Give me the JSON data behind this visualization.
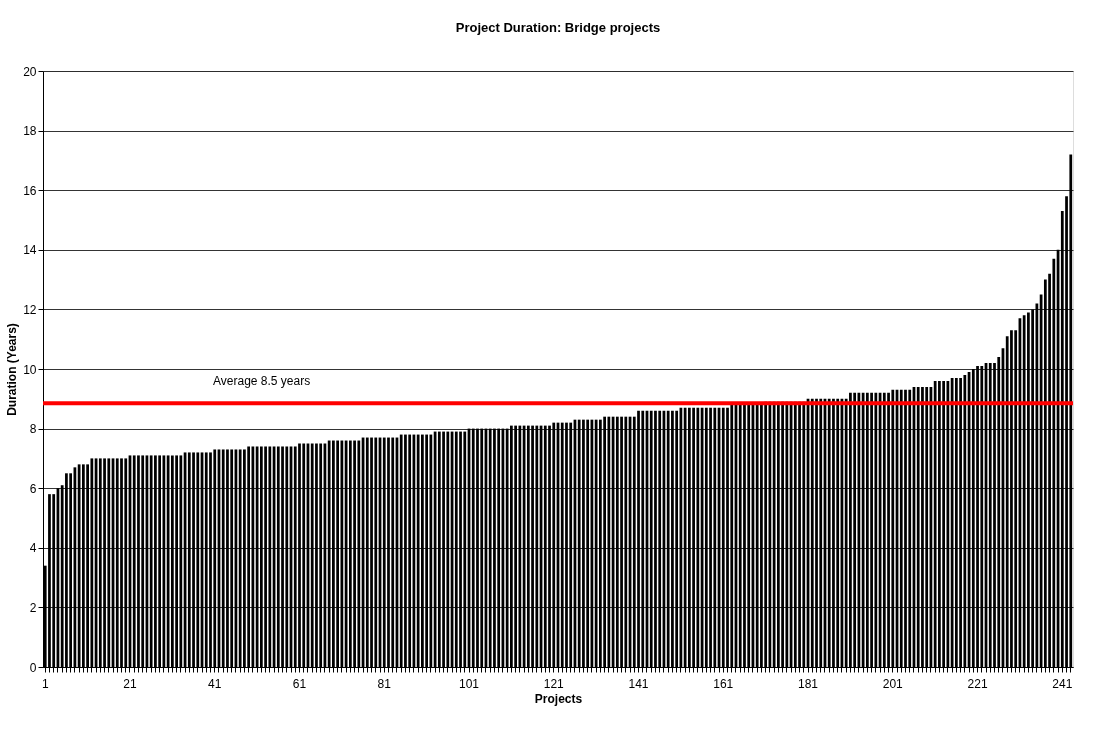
{
  "chart_data": {
    "type": "bar",
    "title": "Project Duration: Bridge projects",
    "xlabel": "Projects",
    "ylabel": "Duration (Years)",
    "categories": [
      "1",
      null,
      null,
      null,
      null,
      null,
      null,
      null,
      null,
      null,
      null,
      null,
      null,
      null,
      null,
      null,
      null,
      null,
      null,
      null,
      "21",
      null,
      null,
      null,
      null,
      null,
      null,
      null,
      null,
      null,
      null,
      null,
      null,
      null,
      null,
      null,
      null,
      null,
      null,
      null,
      "41",
      null,
      null,
      null,
      null,
      null,
      null,
      null,
      null,
      null,
      null,
      null,
      null,
      null,
      null,
      null,
      null,
      null,
      null,
      null,
      "61",
      null,
      null,
      null,
      null,
      null,
      null,
      null,
      null,
      null,
      null,
      null,
      null,
      null,
      null,
      null,
      null,
      null,
      null,
      null,
      "81",
      null,
      null,
      null,
      null,
      null,
      null,
      null,
      null,
      null,
      null,
      null,
      null,
      null,
      null,
      null,
      null,
      null,
      null,
      null,
      "101",
      null,
      null,
      null,
      null,
      null,
      null,
      null,
      null,
      null,
      null,
      null,
      null,
      null,
      null,
      null,
      null,
      null,
      null,
      null,
      "121",
      null,
      null,
      null,
      null,
      null,
      null,
      null,
      null,
      null,
      null,
      null,
      null,
      null,
      null,
      null,
      null,
      null,
      null,
      null,
      "141",
      null,
      null,
      null,
      null,
      null,
      null,
      null,
      null,
      null,
      null,
      null,
      null,
      null,
      null,
      null,
      null,
      null,
      null,
      null,
      "161",
      null,
      null,
      null,
      null,
      null,
      null,
      null,
      null,
      null,
      null,
      null,
      null,
      null,
      null,
      null,
      null,
      null,
      null,
      null,
      "181",
      null,
      null,
      null,
      null,
      null,
      null,
      null,
      null,
      null,
      null,
      null,
      null,
      null,
      null,
      null,
      null,
      null,
      null,
      null,
      "201",
      null,
      null,
      null,
      null,
      null,
      null,
      null,
      null,
      null,
      null,
      null,
      null,
      null,
      null,
      null,
      null,
      null,
      null,
      null,
      "221",
      null,
      null,
      null,
      null,
      null,
      null,
      null,
      null,
      null,
      null,
      null,
      null,
      null,
      null,
      null,
      null,
      null,
      null,
      null,
      "241",
      null,
      null
    ],
    "values": [
      3.4,
      5.8,
      5.8,
      6.0,
      6.1,
      6.5,
      6.5,
      6.7,
      6.8,
      6.8,
      6.8,
      7.0,
      7.0,
      7.0,
      7.0,
      7.0,
      7.0,
      7.0,
      7.0,
      7.0,
      7.1,
      7.1,
      7.1,
      7.1,
      7.1,
      7.1,
      7.1,
      7.1,
      7.1,
      7.1,
      7.1,
      7.1,
      7.1,
      7.2,
      7.2,
      7.2,
      7.2,
      7.2,
      7.2,
      7.2,
      7.3,
      7.3,
      7.3,
      7.3,
      7.3,
      7.3,
      7.3,
      7.3,
      7.4,
      7.4,
      7.4,
      7.4,
      7.4,
      7.4,
      7.4,
      7.4,
      7.4,
      7.4,
      7.4,
      7.4,
      7.5,
      7.5,
      7.5,
      7.5,
      7.5,
      7.5,
      7.5,
      7.6,
      7.6,
      7.6,
      7.6,
      7.6,
      7.6,
      7.6,
      7.6,
      7.7,
      7.7,
      7.7,
      7.7,
      7.7,
      7.7,
      7.7,
      7.7,
      7.7,
      7.8,
      7.8,
      7.8,
      7.8,
      7.8,
      7.8,
      7.8,
      7.8,
      7.9,
      7.9,
      7.9,
      7.9,
      7.9,
      7.9,
      7.9,
      7.9,
      8.0,
      8.0,
      8.0,
      8.0,
      8.0,
      8.0,
      8.0,
      8.0,
      8.0,
      8.0,
      8.1,
      8.1,
      8.1,
      8.1,
      8.1,
      8.1,
      8.1,
      8.1,
      8.1,
      8.1,
      8.2,
      8.2,
      8.2,
      8.2,
      8.2,
      8.3,
      8.3,
      8.3,
      8.3,
      8.3,
      8.3,
      8.3,
      8.4,
      8.4,
      8.4,
      8.4,
      8.4,
      8.4,
      8.4,
      8.4,
      8.6,
      8.6,
      8.6,
      8.6,
      8.6,
      8.6,
      8.6,
      8.6,
      8.6,
      8.6,
      8.7,
      8.7,
      8.7,
      8.7,
      8.7,
      8.7,
      8.7,
      8.7,
      8.7,
      8.7,
      8.7,
      8.7,
      8.8,
      8.8,
      8.8,
      8.8,
      8.8,
      8.8,
      8.8,
      8.8,
      8.9,
      8.9,
      8.9,
      8.9,
      8.9,
      8.9,
      8.9,
      8.9,
      8.9,
      8.9,
      9.0,
      9.0,
      9.0,
      9.0,
      9.0,
      9.0,
      9.0,
      9.0,
      9.0,
      9.0,
      9.2,
      9.2,
      9.2,
      9.2,
      9.2,
      9.2,
      9.2,
      9.2,
      9.2,
      9.2,
      9.3,
      9.3,
      9.3,
      9.3,
      9.3,
      9.4,
      9.4,
      9.4,
      9.4,
      9.4,
      9.6,
      9.6,
      9.6,
      9.6,
      9.7,
      9.7,
      9.7,
      9.8,
      9.9,
      10.0,
      10.1,
      10.1,
      10.2,
      10.2,
      10.2,
      10.4,
      10.7,
      11.1,
      11.3,
      11.3,
      11.7,
      11.8,
      11.9,
      12.0,
      12.2,
      12.5,
      13.0,
      13.2,
      13.7,
      14.0,
      15.3,
      15.8,
      17.2
    ],
    "color": "#000000",
    "ylim": [
      0,
      20
    ],
    "yticks": [
      0,
      2,
      4,
      6,
      8,
      10,
      12,
      14,
      16,
      18,
      20
    ],
    "grid": "y",
    "ref_lines": [
      {
        "axis": "y",
        "value": 8.85,
        "label": "Average 8.5 years",
        "color": "#ff0000"
      }
    ]
  }
}
